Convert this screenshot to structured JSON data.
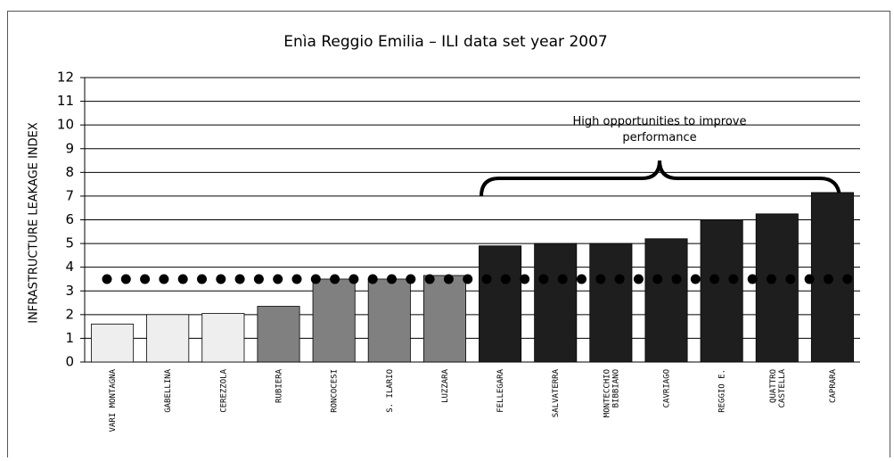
{
  "chart_data": {
    "type": "bar",
    "title": "Enìa Reggio Emilia – ILI data set year 2007",
    "y_axis_label": "INFRASTRUCTURE LEAKAGE INDEX",
    "categories": [
      "VARI MONTAGNA",
      "GABELLINA",
      "CEREZZOLA",
      "RUBIERA",
      "RONCOCESI",
      "S. ILARIO",
      "LUZZARA",
      "FELLEGARA",
      "SALVATERRA",
      "MONTECCHIO\nBIBBIANO",
      "CAVRIAGO",
      "REGGIO E.",
      "QUATTRO\nCASTELLA",
      "CAPRARA"
    ],
    "values": [
      1.6,
      2.0,
      2.05,
      2.35,
      3.5,
      3.5,
      3.65,
      4.9,
      5.0,
      5.0,
      5.2,
      6.0,
      6.25,
      7.15
    ],
    "colors": [
      "#eeeeee",
      "#eeeeee",
      "#eeeeee",
      "#808080",
      "#808080",
      "#808080",
      "#808080",
      "#1e1e1e",
      "#1e1e1e",
      "#1e1e1e",
      "#1e1e1e",
      "#1e1e1e",
      "#1e1e1e",
      "#1e1e1e"
    ],
    "reference_line": 3.5,
    "annotation": "High opportunities to improve\nperformance",
    "ylim": [
      0,
      12
    ],
    "yticks": [
      0,
      1,
      2,
      3,
      4,
      5,
      6,
      7,
      8,
      9,
      10,
      11,
      12
    ],
    "grid": true
  }
}
